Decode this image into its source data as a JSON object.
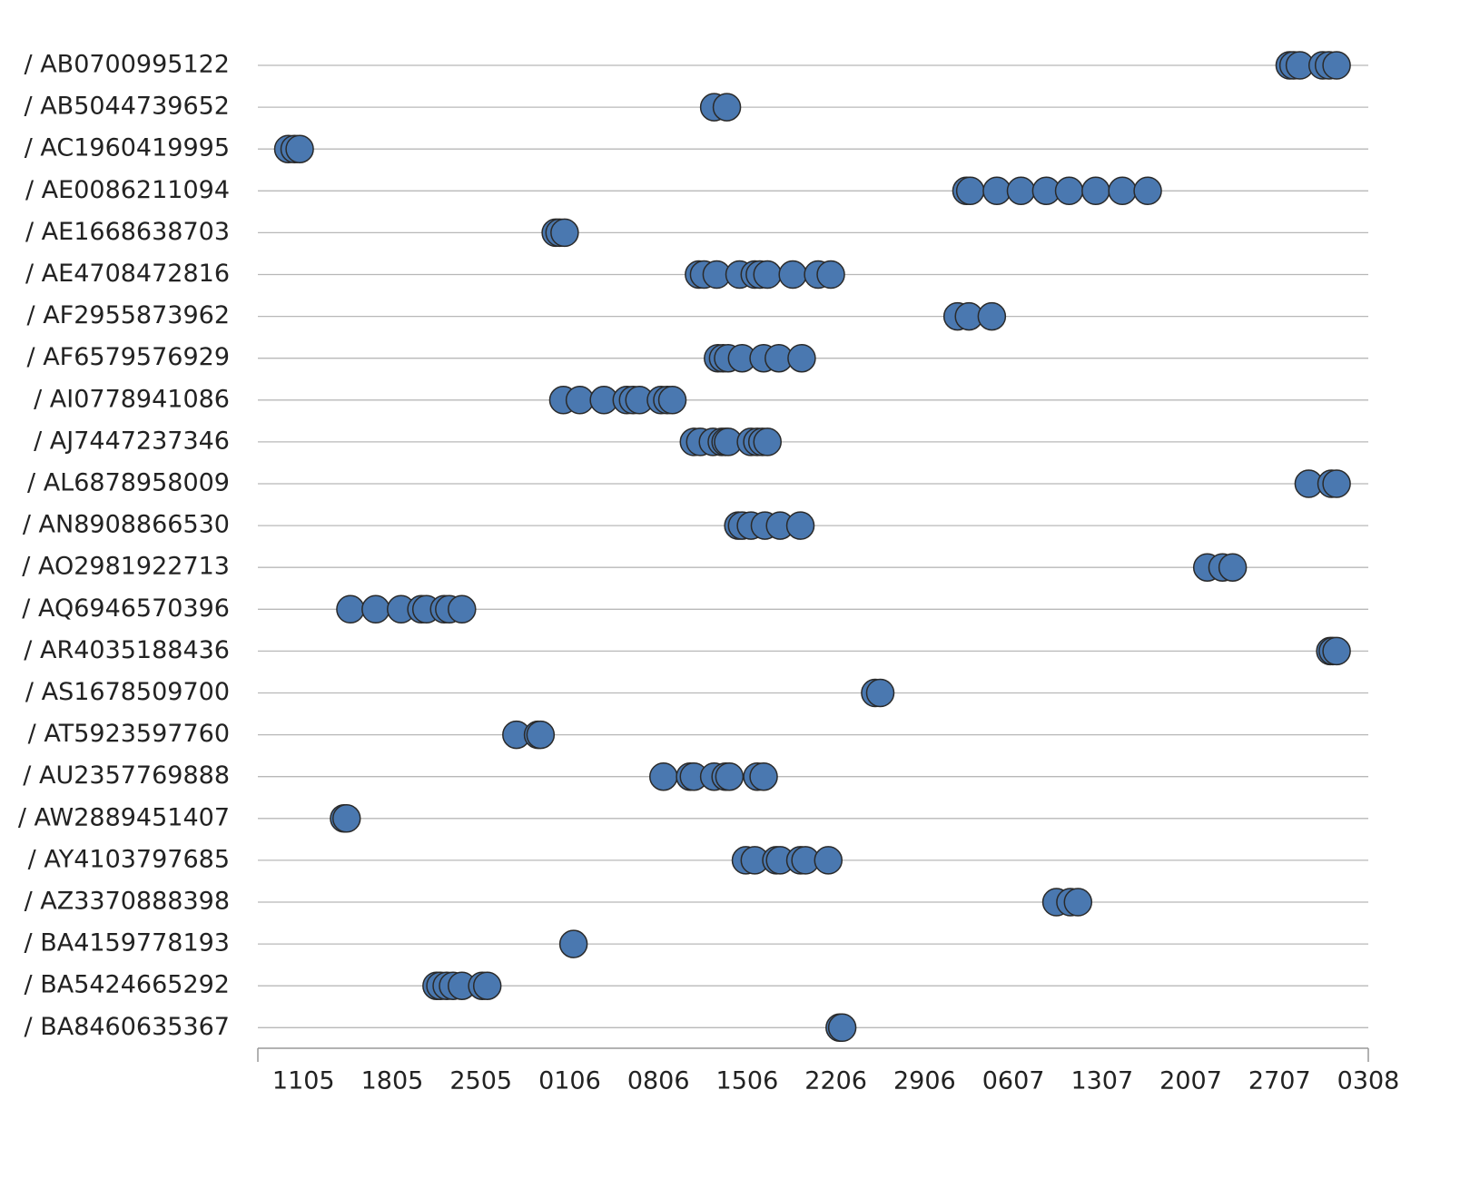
{
  "chart_data": {
    "type": "scatter",
    "categories": [
      "/ AB0700995122",
      "/ AB5044739652",
      "/ AC1960419995",
      "/ AE0086211094",
      "/ AE1668638703",
      "/ AE4708472816",
      "/ AF2955873962",
      "/ AF6579576929",
      "/ AI0778941086",
      "/ AJ7447237346",
      "/ AL6878958009",
      "/ AN8908866530",
      "/ AO2981922713",
      "/ AQ6946570396",
      "/ AR4035188436",
      "/ AS1678509700",
      "/ AT5923597760",
      "/ AU2357769888",
      "/ AW2889451407",
      "/ AY4103797685",
      "/ AZ3370888398",
      "/ BA4159778193",
      "/ BA5424665292",
      "/ BA8460635367"
    ],
    "x": [
      [
        77.8,
        78.1,
        78.6,
        80.4,
        80.9,
        81.5
      ],
      [
        32.4,
        33.4
      ],
      [
        -1.2,
        -0.7,
        -0.3
      ],
      [
        52.3,
        52.6,
        54.7,
        56.6,
        58.6,
        60.4,
        62.5,
        64.6,
        66.6
      ],
      [
        19.9,
        20.2,
        20.6
      ],
      [
        31.2,
        31.6,
        32.6,
        34.4,
        35.6,
        36.0,
        36.6,
        38.6,
        40.6,
        41.6
      ],
      [
        51.6,
        52.5,
        54.3
      ],
      [
        32.7,
        33.1,
        33.5,
        34.6,
        36.3,
        37.5,
        39.3
      ],
      [
        20.5,
        21.8,
        23.7,
        25.5,
        26.0,
        26.5,
        28.2,
        28.7,
        29.1
      ],
      [
        30.8,
        31.3,
        32.3,
        33.0,
        33.3,
        33.5,
        35.3,
        35.8,
        36.2,
        36.6
      ],
      [
        79.3,
        81.1,
        81.5
      ],
      [
        34.3,
        34.6,
        35.3,
        36.4,
        37.6,
        39.2
      ],
      [
        71.3,
        72.5,
        73.3
      ],
      [
        3.7,
        5.7,
        7.7,
        9.3,
        9.7,
        11.1,
        11.5,
        12.5
      ],
      [
        81.0,
        81.2,
        81.5
      ],
      [
        45.1,
        45.5
      ],
      [
        16.8,
        18.5,
        18.7
      ],
      [
        28.4,
        30.5,
        30.8,
        32.4,
        33.3,
        33.6,
        35.8,
        36.3
      ],
      [
        3.2,
        3.4
      ],
      [
        34.9,
        35.6,
        37.3,
        37.6,
        39.2,
        39.6,
        41.4
      ],
      [
        59.4,
        60.5,
        61.1
      ],
      [
        21.3
      ],
      [
        10.5,
        10.8,
        11.3,
        11.8,
        12.5,
        14.1,
        14.5
      ],
      [
        42.3,
        42.5
      ]
    ],
    "xlim": [
      -3.6,
      84
    ],
    "xticks": [
      {
        "value": 0,
        "label": "1105"
      },
      {
        "value": 7,
        "label": "1805"
      },
      {
        "value": 14,
        "label": "2505"
      },
      {
        "value": 21,
        "label": "0106"
      },
      {
        "value": 28,
        "label": "0806"
      },
      {
        "value": 35,
        "label": "1506"
      },
      {
        "value": 42,
        "label": "2206"
      },
      {
        "value": 49,
        "label": "2906"
      },
      {
        "value": 56,
        "label": "0607"
      },
      {
        "value": 63,
        "label": "1307"
      },
      {
        "value": 70,
        "label": "2007"
      },
      {
        "value": 77,
        "label": "2707"
      },
      {
        "value": 84,
        "label": "0308"
      }
    ],
    "color": "#4a78b0"
  }
}
